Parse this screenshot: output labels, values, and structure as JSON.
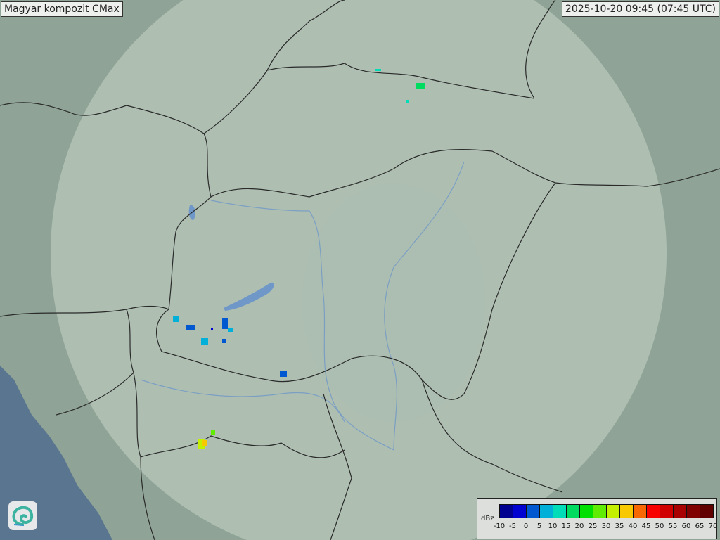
{
  "header": {
    "title": "Magyar kompozit  CMax",
    "timestamp": "2025-10-20 09:45 (07:45 UTC)"
  },
  "legend": {
    "unit": "dBz",
    "ticks": [
      "-10",
      "-5",
      "0",
      "5",
      "10",
      "15",
      "20",
      "25",
      "30",
      "35",
      "40",
      "45",
      "50",
      "55",
      "60",
      "65",
      "70"
    ],
    "colors": [
      "#000090",
      "#0000d0",
      "#0058d0",
      "#00b0d8",
      "#00dcb8",
      "#00dc60",
      "#00e000",
      "#60ec00",
      "#c4f000",
      "#f8c800",
      "#f86800",
      "#f80000",
      "#d00000",
      "#a80000",
      "#800000",
      "#600000"
    ]
  },
  "logo": {
    "icon": "swirl-logo-icon"
  },
  "colors": {
    "land": "#8fa496",
    "coverage": "#b9c9be",
    "sea": "#5a7590",
    "border": "#2a2a2a",
    "river": "#6f97c8"
  }
}
